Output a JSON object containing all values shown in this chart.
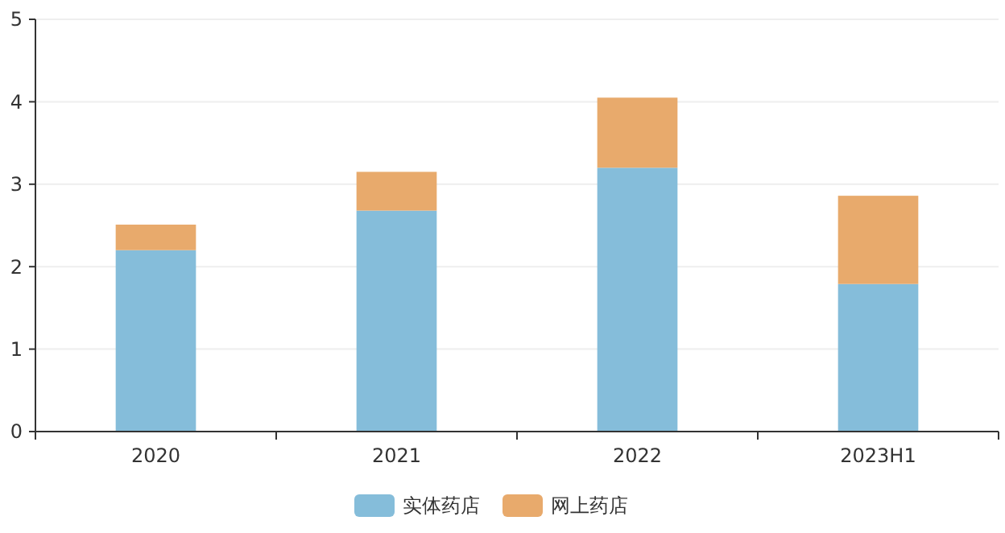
{
  "chart_data": {
    "type": "bar",
    "stacked": true,
    "categories": [
      "2020",
      "2021",
      "2022",
      "2023H1"
    ],
    "series": [
      {
        "name": "实体药店",
        "color": "#85bdda",
        "values": [
          2.2,
          2.68,
          3.2,
          1.79
        ]
      },
      {
        "name": "网上药店",
        "color": "#e8aa6c",
        "values": [
          0.31,
          0.47,
          0.85,
          1.07
        ]
      }
    ],
    "ylim": [
      0,
      5
    ],
    "yticks": [
      0,
      1,
      2,
      3,
      4,
      5
    ],
    "grid": "y",
    "legend": "bottom"
  }
}
